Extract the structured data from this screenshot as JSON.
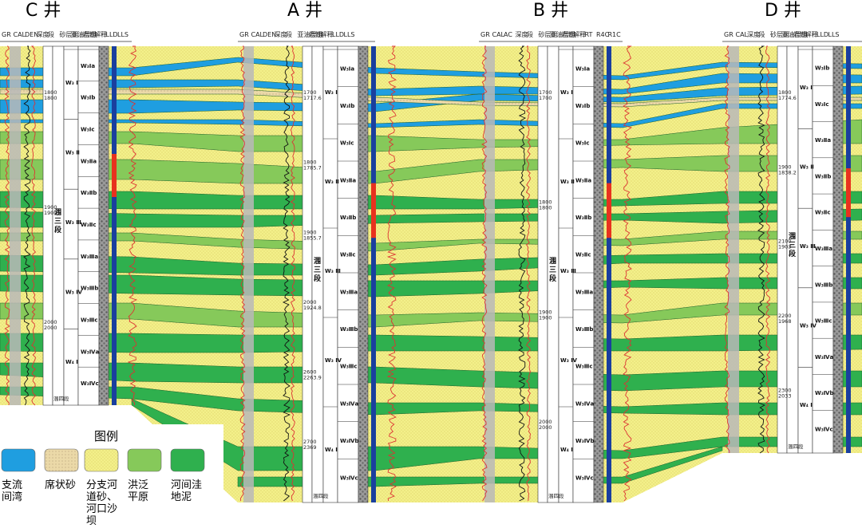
{
  "title_label": "",
  "wells": [
    {
      "id": "C",
      "name": "C 井",
      "headers": [
        "GR",
        "CAL",
        "DEN",
        "深度",
        "段",
        "砂层组",
        "亚油层组",
        "岩性",
        "解释",
        "LLD",
        "LLS"
      ],
      "depths": [
        "1800",
        "1800",
        "1900",
        "1900",
        "2000",
        "2000"
      ],
      "zones": [
        "W₃Ⅰa",
        "W₃Ⅰb",
        "W₃Ⅰc",
        "W₃Ⅱa",
        "W₃Ⅱb",
        "W₃Ⅱc",
        "W₃Ⅲa",
        "W₃Ⅲb",
        "W₃Ⅲc",
        "W₃Ⅳa",
        "W₃Ⅳc"
      ],
      "groups": [
        "W₃ Ⅰ",
        "W₃ Ⅱ",
        "W₃ Ⅲ",
        "W₃ Ⅳ",
        "W₄ Ⅰ"
      ],
      "segment": "涠三段",
      "bottom": "涠四段"
    },
    {
      "id": "A",
      "name": "A 井",
      "headers": [
        "GR",
        "CAL",
        "DEN",
        "深度",
        "段",
        "亚油层组",
        "岩性",
        "解释",
        "LLD",
        "LLS"
      ],
      "depths": [
        "1700",
        "1717.6",
        "1800",
        "1785.7",
        "1900",
        "1855.7",
        "2000",
        "1924.8",
        "2600",
        "2263.9",
        "2700",
        "2369"
      ],
      "zones": [
        "W₃Ⅰa",
        "W₃Ⅰb",
        "W₃Ⅰc",
        "W₃Ⅱa",
        "W₃Ⅱb",
        "W₃Ⅱc",
        "W₃Ⅲa",
        "W₃Ⅲb",
        "W₃Ⅲc",
        "W₃Ⅳa",
        "W₃Ⅳb",
        "W₃Ⅳc"
      ],
      "groups": [
        "W₃ Ⅰ",
        "W₃ Ⅱ",
        "W₃ Ⅲ",
        "W₃ Ⅳ",
        "W₄ Ⅰ"
      ],
      "segment": "涠三段",
      "bottom": "涠四段"
    },
    {
      "id": "B",
      "name": "B 井",
      "headers": [
        "GR",
        "CAL",
        "AC",
        "深度",
        "段",
        "砂层组",
        "亚油层组",
        "岩性",
        "解释",
        "RT",
        "R4C",
        "R1C"
      ],
      "depths": [
        "1700",
        "1700",
        "1800",
        "1800",
        "1900",
        "1900",
        "2000",
        "2000"
      ],
      "zones": [
        "W₃Ⅰa",
        "W₃Ⅰb",
        "W₃Ⅰc",
        "W₃Ⅱa",
        "W₃Ⅱb",
        "W₃Ⅱc",
        "W₃Ⅲa",
        "W₃Ⅲb",
        "W₃Ⅲc",
        "W₃Ⅳa",
        "W₃Ⅳb",
        "W₃Ⅳc"
      ],
      "groups": [
        "W₃ Ⅰ",
        "W₃ Ⅱ",
        "W₃ Ⅲ",
        "W₃ Ⅳ",
        "W₄ Ⅰ"
      ],
      "segment": "涠三段",
      "bottom": "涠四段"
    },
    {
      "id": "D",
      "name": "D 井",
      "headers": [
        "GR",
        "CAL",
        "深度",
        "段",
        "砂层组",
        "亚油层组",
        "岩性",
        "解释",
        "LLD",
        "LLS"
      ],
      "depths": [
        "1800",
        "1774.6",
        "1900",
        "1838.2",
        "2100",
        "1903",
        "2200",
        "1968",
        "2300",
        "2033"
      ],
      "zones": [
        "W₃Ⅰb",
        "W₃Ⅰc",
        "W₃Ⅱa",
        "W₃Ⅱb",
        "W₃Ⅱc",
        "W₃Ⅲa",
        "W₃Ⅲb",
        "W₃Ⅲc",
        "W₃Ⅳa",
        "W₃Ⅳb",
        "W₃Ⅳc"
      ],
      "groups": [
        "W₃ Ⅰ",
        "W₃ Ⅱ",
        "W₃ Ⅲ",
        "W₃ Ⅳ",
        "W₄ Ⅰ"
      ],
      "segment": "涠三段",
      "bottom": "涠四段"
    }
  ],
  "legend": {
    "title": "图例",
    "items": [
      {
        "key": "distributary_bay",
        "label_lines": [
          "支流",
          "间湾"
        ],
        "color": "#1f9ee0"
      },
      {
        "key": "sheet_sand",
        "label_lines": [
          "席状砂"
        ],
        "color": "#ebd9a8"
      },
      {
        "key": "channel_sand",
        "label_lines": [
          "分支河",
          "道砂、",
          "河口沙",
          "坝"
        ],
        "color": "#f3f08a"
      },
      {
        "key": "flood_plain",
        "label_lines": [
          "洪泛",
          "平原"
        ],
        "color": "#86c95a"
      },
      {
        "key": "interchannel_mud",
        "label_lines": [
          "河间洼",
          "地泥"
        ],
        "color": "#2fb04e"
      }
    ]
  },
  "colors": {
    "yellow": "#f3f08a",
    "green": "#2fb04e",
    "lightgreen": "#86c95a",
    "blue": "#1f9ee0",
    "sand": "#ebd9a8",
    "red": "#e8321e",
    "darkblue": "#1a3f9e"
  }
}
